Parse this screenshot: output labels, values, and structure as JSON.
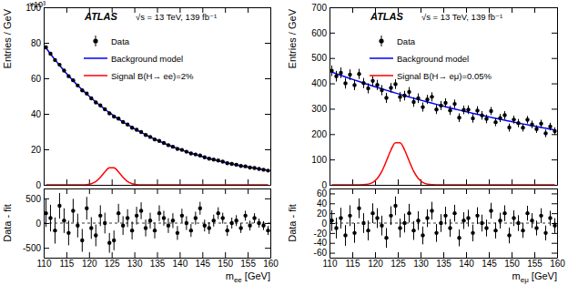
{
  "chart_data": [
    {
      "type": "scatter",
      "ylabel": "Entries / GeV",
      "annotations": [
        "ATLAS",
        "√s = 13 TeV, 139 fb⁻¹",
        "×10³"
      ],
      "legend": "upper left",
      "tick_labels": "y",
      "x": [
        110.5,
        111.5,
        112.5,
        113.5,
        114.5,
        115.5,
        116.5,
        117.5,
        118.5,
        119.5,
        120.5,
        121.5,
        122.5,
        123.5,
        124.5,
        125.5,
        126.5,
        127.5,
        128.5,
        129.5,
        130.5,
        131.5,
        132.5,
        133.5,
        134.5,
        135.5,
        136.5,
        137.5,
        138.5,
        139.5,
        140.5,
        141.5,
        142.5,
        143.5,
        144.5,
        145.5,
        146.5,
        147.5,
        148.5,
        149.5,
        150.5,
        151.5,
        152.5,
        153.5,
        154.5,
        155.5,
        156.5,
        157.5,
        158.5,
        159.5
      ],
      "series": [
        {
          "name": "Data",
          "type": "scatter",
          "marker": "circle",
          "color": "#000000",
          "values": [
            77.41,
            73.85,
            70.3,
            67.65,
            64.34,
            61.21,
            58.91,
            55.98,
            53.17,
            51.43,
            48.74,
            46.4,
            44.71,
            42.57,
            40.26,
            38.49,
            37.3,
            35.39,
            33.96,
            32.19,
            31.04,
            29.76,
            28.09,
            26.98,
            25.57,
            24.77,
            23.57,
            22.37,
            21.47,
            20.26,
            19.69,
            18.67,
            17.68,
            17.13,
            16.57,
            15.49,
            14.75,
            14.23,
            13.75,
            13.04,
            12.21,
            11.81,
            11.33,
            10.67,
            10.44,
            9.78,
            9.49,
            8.97,
            8.52,
            8.03
          ],
          "errors": [
            0.28,
            0.27,
            0.265,
            0.26,
            0.25,
            0.25,
            0.24,
            0.24,
            0.23,
            0.23,
            0.22,
            0.22,
            0.21,
            0.21,
            0.2,
            0.2,
            0.19,
            0.19,
            0.18,
            0.18,
            0.18,
            0.17,
            0.17,
            0.16,
            0.16,
            0.16,
            0.15,
            0.15,
            0.15,
            0.14,
            0.14,
            0.14,
            0.13,
            0.13,
            0.13,
            0.12,
            0.12,
            0.12,
            0.12,
            0.11,
            0.11,
            0.11,
            0.11,
            0.1,
            0.1,
            0.1,
            0.1,
            0.09,
            0.09,
            0.09
          ]
        },
        {
          "name": "Background model",
          "type": "line",
          "line_style": "solid",
          "color": "#0000ff",
          "values": [
            77.21,
            73.75,
            70.45,
            67.3,
            64.29,
            61.41,
            58.66,
            56.03,
            53.52,
            51.13,
            48.84,
            46.65,
            44.56,
            42.57,
            40.66,
            38.84,
            37.1,
            35.44,
            33.86,
            32.34,
            30.89,
            29.51,
            28.19,
            26.93,
            25.72,
            24.57,
            23.47,
            22.42,
            21.42,
            20.46,
            19.54,
            18.67,
            17.83,
            17.03,
            16.27,
            15.54,
            14.85,
            14.18,
            13.55,
            12.94,
            12.36,
            11.81,
            11.28,
            10.77,
            10.29,
            9.83,
            9.39,
            8.97,
            8.57,
            8.18
          ]
        },
        {
          "name": "Signal B(H→ ee)=2%",
          "type": "line",
          "line_style": "solid",
          "color": "#ff0000",
          "values": [
            0,
            0,
            0,
            0,
            0,
            0,
            0,
            0,
            0.03,
            0.15,
            0.61,
            1.83,
            4.21,
            7.32,
            9.66,
            9.66,
            7.32,
            4.21,
            1.83,
            0.61,
            0.15,
            0.03,
            0,
            0,
            0,
            0,
            0,
            0,
            0,
            0,
            0,
            0,
            0,
            0,
            0,
            0,
            0,
            0,
            0,
            0,
            0,
            0,
            0,
            0,
            0,
            0,
            0,
            0,
            0,
            0
          ]
        }
      ],
      "xlim": [
        110,
        160
      ],
      "xticks": [
        110,
        115,
        120,
        125,
        130,
        135,
        140,
        145,
        150,
        155,
        160
      ],
      "ylim": [
        0,
        100
      ],
      "yticks": [
        0,
        20,
        40,
        60,
        80,
        100
      ]
    },
    {
      "type": "scatter",
      "ylabel": "Data - fit",
      "xlabel": "mee [GeV]",
      "marker": "circle",
      "color": "#000000",
      "x": [
        110.5,
        111.5,
        112.5,
        113.5,
        114.5,
        115.5,
        116.5,
        117.5,
        118.5,
        119.5,
        120.5,
        121.5,
        122.5,
        123.5,
        124.5,
        125.5,
        126.5,
        127.5,
        128.5,
        129.5,
        130.5,
        131.5,
        132.5,
        133.5,
        134.5,
        135.5,
        136.5,
        137.5,
        138.5,
        139.5,
        140.5,
        141.5,
        142.5,
        143.5,
        144.5,
        145.5,
        146.5,
        147.5,
        148.5,
        149.5,
        150.5,
        151.5,
        152.5,
        153.5,
        154.5,
        155.5,
        156.5,
        157.5,
        158.5,
        159.5
      ],
      "values": [
        200,
        100,
        -150,
        350,
        50,
        -200,
        250,
        -50,
        -350,
        300,
        -100,
        -250,
        150,
        0,
        -400,
        -350,
        200,
        -50,
        100,
        -150,
        150,
        250,
        -100,
        50,
        -150,
        200,
        100,
        -50,
        50,
        -200,
        150,
        0,
        -150,
        100,
        300,
        -50,
        -100,
        50,
        200,
        100,
        -150,
        0,
        50,
        -100,
        150,
        -50,
        100,
        0,
        -50,
        -150
      ],
      "errors": [
        280,
        270,
        265,
        260,
        250,
        250,
        240,
        240,
        230,
        230,
        220,
        220,
        210,
        210,
        200,
        200,
        190,
        190,
        180,
        180,
        180,
        170,
        170,
        160,
        160,
        160,
        150,
        150,
        150,
        140,
        140,
        140,
        130,
        130,
        130,
        120,
        120,
        120,
        120,
        110,
        110,
        110,
        110,
        100,
        100,
        100,
        100,
        90,
        90,
        90
      ],
      "xlim": [
        110,
        160
      ],
      "xticks": [
        110,
        115,
        120,
        125,
        130,
        135,
        140,
        145,
        150,
        155,
        160
      ],
      "ylim": [
        -700,
        700
      ],
      "yticks": [
        -500,
        0,
        500
      ]
    },
    {
      "type": "scatter",
      "ylabel": "Entries / GeV",
      "annotations": [
        "ATLAS",
        "√s = 13 TeV, 139 fb⁻¹"
      ],
      "legend": "upper left",
      "tick_labels": "y",
      "x": [
        110.5,
        111.5,
        112.5,
        113.5,
        114.5,
        115.5,
        116.5,
        117.5,
        118.5,
        119.5,
        120.5,
        121.5,
        122.5,
        123.5,
        124.5,
        125.5,
        126.5,
        127.5,
        128.5,
        129.5,
        130.5,
        131.5,
        132.5,
        133.5,
        134.5,
        135.5,
        136.5,
        137.5,
        138.5,
        139.5,
        140.5,
        141.5,
        142.5,
        143.5,
        144.5,
        145.5,
        146.5,
        147.5,
        148.5,
        149.5,
        150.5,
        151.5,
        152.5,
        153.5,
        154.5,
        155.5,
        156.5,
        157.5,
        158.5,
        159.5
      ],
      "series": [
        {
          "name": "Data",
          "type": "scatter",
          "marker": "circle",
          "color": "#000000",
          "values": [
            449.7,
            428.2,
            441.8,
            400.5,
            434.3,
            393.2,
            437.2,
            401.3,
            380.5,
            409.7,
            394.0,
            373.4,
            342.9,
            382.5,
            397.1,
            346.8,
            351.6,
            366.5,
            326.5,
            341.5,
            306.6,
            336.8,
            347.0,
            297.3,
            312.7,
            323.1,
            293.6,
            319.2,
            264.8,
            295.5,
            296.3,
            262.1,
            293.0,
            274.0,
            260.0,
            291.1,
            247.2,
            263.4,
            274.6,
            225.9,
            257.2,
            243.6,
            225.1,
            256.6,
            238.2,
            219.8,
            241.4,
            203.1,
            229.9,
            211.7
          ],
          "errors": [
            21,
            21,
            21,
            21,
            21,
            20,
            20,
            20,
            20,
            20,
            20,
            20,
            20,
            19,
            19,
            19,
            19,
            19,
            19,
            19,
            18,
            18,
            18,
            18,
            18,
            18,
            18,
            17,
            17,
            17,
            17,
            17,
            17,
            17,
            17,
            16,
            16,
            16,
            16,
            16,
            16,
            16,
            15,
            15,
            15,
            15,
            15,
            15,
            15,
            15
          ]
        },
        {
          "name": "Background model",
          "type": "line",
          "line_style": "solid",
          "color": "#0000ff",
          "values": [
            444.7,
            438.2,
            431.8,
            425.5,
            419.3,
            413.2,
            407.2,
            401.3,
            395.5,
            389.7,
            384.0,
            378.4,
            372.9,
            367.5,
            362.1,
            356.8,
            351.6,
            346.5,
            341.5,
            336.5,
            331.6,
            326.8,
            322.0,
            317.3,
            312.7,
            308.1,
            303.6,
            299.2,
            294.8,
            290.5,
            286.3,
            282.1,
            278.0,
            274.0,
            270.0,
            266.1,
            262.2,
            258.4,
            254.6,
            250.9,
            247.2,
            243.6,
            240.1,
            236.6,
            233.2,
            229.8,
            226.4,
            223.1,
            219.9,
            216.7
          ]
        },
        {
          "name": "Signal B(H→ eμ)=0.05%",
          "type": "line",
          "line_style": "solid",
          "color": "#ff0000",
          "values": [
            0,
            0,
            0,
            0,
            0,
            0,
            0.2,
            0.8,
            3.1,
            9.7,
            25.1,
            53.4,
            94.1,
            137.4,
            166.0,
            166.0,
            137.4,
            94.1,
            53.4,
            25.1,
            9.7,
            3.1,
            0.8,
            0.2,
            0,
            0,
            0,
            0,
            0,
            0,
            0,
            0,
            0,
            0,
            0,
            0,
            0,
            0,
            0,
            0,
            0,
            0,
            0,
            0,
            0,
            0,
            0,
            0,
            0,
            0
          ]
        }
      ],
      "xlim": [
        110,
        160
      ],
      "xticks": [
        110,
        115,
        120,
        125,
        130,
        135,
        140,
        145,
        150,
        155,
        160
      ],
      "ylim": [
        0,
        700
      ],
      "yticks": [
        0,
        100,
        200,
        300,
        400,
        500,
        600,
        700
      ]
    },
    {
      "type": "scatter",
      "ylabel": "Data - fit",
      "xlabel": "meμ [GeV]",
      "marker": "circle",
      "color": "#000000",
      "x": [
        110.5,
        111.5,
        112.5,
        113.5,
        114.5,
        115.5,
        116.5,
        117.5,
        118.5,
        119.5,
        120.5,
        121.5,
        122.5,
        123.5,
        124.5,
        125.5,
        126.5,
        127.5,
        128.5,
        129.5,
        130.5,
        131.5,
        132.5,
        133.5,
        134.5,
        135.5,
        136.5,
        137.5,
        138.5,
        139.5,
        140.5,
        141.5,
        142.5,
        143.5,
        144.5,
        145.5,
        146.5,
        147.5,
        148.5,
        149.5,
        150.5,
        151.5,
        152.5,
        153.5,
        154.5,
        155.5,
        156.5,
        157.5,
        158.5,
        159.5
      ],
      "values": [
        5,
        -10,
        10,
        -25,
        15,
        -20,
        30,
        0,
        -15,
        20,
        10,
        -5,
        -30,
        15,
        35,
        -10,
        0,
        20,
        -15,
        5,
        -25,
        10,
        25,
        -20,
        0,
        15,
        -10,
        20,
        -30,
        5,
        10,
        -20,
        15,
        0,
        -10,
        25,
        -15,
        5,
        20,
        -25,
        10,
        0,
        -15,
        20,
        5,
        -10,
        15,
        -20,
        10,
        -5
      ],
      "errors": [
        21,
        21,
        21,
        21,
        21,
        20,
        20,
        20,
        20,
        20,
        20,
        20,
        20,
        19,
        19,
        19,
        19,
        19,
        19,
        19,
        18,
        18,
        18,
        18,
        18,
        18,
        18,
        17,
        17,
        17,
        17,
        17,
        17,
        17,
        17,
        16,
        16,
        16,
        16,
        16,
        16,
        16,
        15,
        15,
        15,
        15,
        15,
        15,
        15,
        15
      ],
      "xlim": [
        110,
        160
      ],
      "xticks": [
        110,
        115,
        120,
        125,
        130,
        135,
        140,
        145,
        150,
        155,
        160
      ],
      "ylim": [
        -70,
        70
      ],
      "yticks": [
        -60,
        -40,
        -20,
        0,
        20,
        40,
        60
      ]
    }
  ]
}
